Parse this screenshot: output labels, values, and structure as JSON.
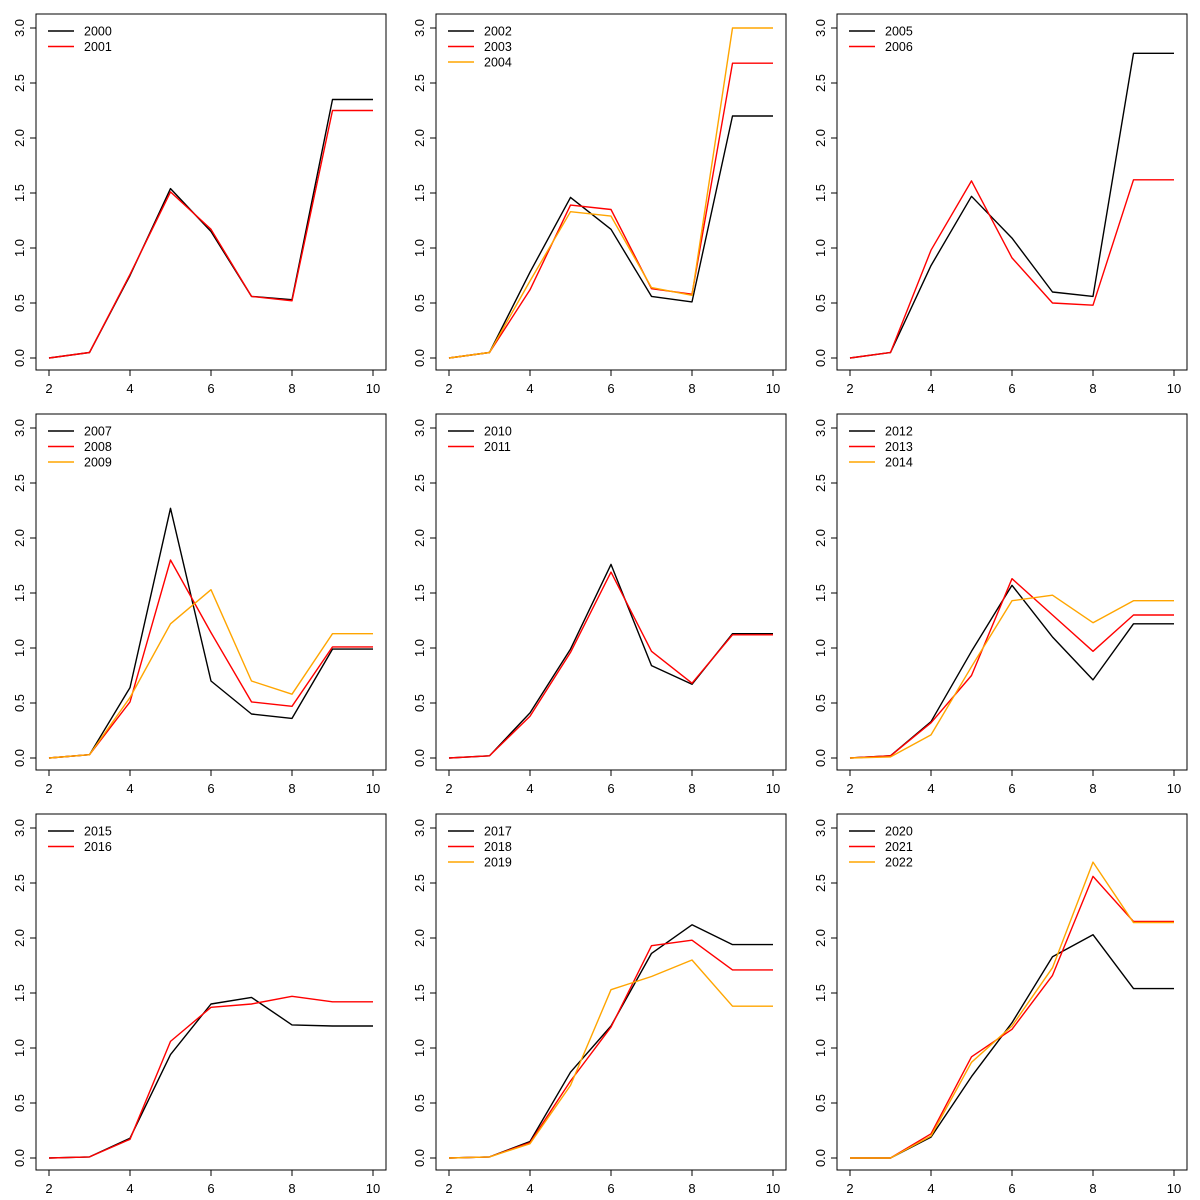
{
  "chart_data": [
    {
      "type": "line",
      "x": [
        2,
        3,
        4,
        5,
        6,
        7,
        8,
        9,
        10
      ],
      "xlim": [
        2,
        10
      ],
      "ylim": [
        0,
        3
      ],
      "xticks": [
        "2",
        "4",
        "6",
        "8",
        "10"
      ],
      "yticks": [
        "0.0",
        "0.5",
        "1.0",
        "1.5",
        "2.0",
        "2.5",
        "3.0"
      ],
      "legend": "top-left",
      "series": [
        {
          "name": "2000",
          "color": "#000000",
          "values": [
            0,
            0.05,
            0.75,
            1.54,
            1.15,
            0.56,
            0.53,
            2.35,
            2.35
          ]
        },
        {
          "name": "2001",
          "color": "#ff0000",
          "values": [
            0,
            0.05,
            0.76,
            1.51,
            1.17,
            0.56,
            0.52,
            2.25,
            2.25
          ]
        }
      ]
    },
    {
      "type": "line",
      "x": [
        2,
        3,
        4,
        5,
        6,
        7,
        8,
        9,
        10
      ],
      "xlim": [
        2,
        10
      ],
      "ylim": [
        0,
        3
      ],
      "xticks": [
        "2",
        "4",
        "6",
        "8",
        "10"
      ],
      "yticks": [
        "0.0",
        "0.5",
        "1.0",
        "1.5",
        "2.0",
        "2.5",
        "3.0"
      ],
      "legend": "top-left",
      "series": [
        {
          "name": "2002",
          "color": "#000000",
          "values": [
            0,
            0.05,
            0.78,
            1.46,
            1.17,
            0.56,
            0.51,
            2.2,
            2.2
          ]
        },
        {
          "name": "2003",
          "color": "#ff0000",
          "values": [
            0,
            0.05,
            0.62,
            1.39,
            1.35,
            0.63,
            0.58,
            2.68,
            2.68
          ]
        },
        {
          "name": "2004",
          "color": "#ffa500",
          "values": [
            0,
            0.05,
            0.7,
            1.33,
            1.29,
            0.64,
            0.57,
            3.0,
            3.0
          ]
        }
      ]
    },
    {
      "type": "line",
      "x": [
        2,
        3,
        4,
        5,
        6,
        7,
        8,
        9,
        10
      ],
      "xlim": [
        2,
        10
      ],
      "ylim": [
        0,
        3
      ],
      "xticks": [
        "2",
        "4",
        "6",
        "8",
        "10"
      ],
      "yticks": [
        "0.0",
        "0.5",
        "1.0",
        "1.5",
        "2.0",
        "2.5",
        "3.0"
      ],
      "legend": "top-left",
      "series": [
        {
          "name": "2005",
          "color": "#000000",
          "values": [
            0,
            0.05,
            0.84,
            1.47,
            1.09,
            0.6,
            0.56,
            2.77,
            2.77
          ]
        },
        {
          "name": "2006",
          "color": "#ff0000",
          "values": [
            0,
            0.05,
            0.98,
            1.61,
            0.91,
            0.5,
            0.48,
            1.62,
            1.62
          ]
        }
      ]
    },
    {
      "type": "line",
      "x": [
        2,
        3,
        4,
        5,
        6,
        7,
        8,
        9,
        10
      ],
      "xlim": [
        2,
        10
      ],
      "ylim": [
        0,
        3
      ],
      "xticks": [
        "2",
        "4",
        "6",
        "8",
        "10"
      ],
      "yticks": [
        "0.0",
        "0.5",
        "1.0",
        "1.5",
        "2.0",
        "2.5",
        "3.0"
      ],
      "legend": "top-left",
      "series": [
        {
          "name": "2007",
          "color": "#000000",
          "values": [
            0,
            0.03,
            0.64,
            2.27,
            0.7,
            0.4,
            0.36,
            0.99,
            0.99
          ]
        },
        {
          "name": "2008",
          "color": "#ff0000",
          "values": [
            0,
            0.03,
            0.51,
            1.8,
            1.14,
            0.51,
            0.47,
            1.01,
            1.01
          ]
        },
        {
          "name": "2009",
          "color": "#ffa500",
          "values": [
            0,
            0.03,
            0.55,
            1.22,
            1.53,
            0.7,
            0.58,
            1.13,
            1.13
          ]
        }
      ]
    },
    {
      "type": "line",
      "x": [
        2,
        3,
        4,
        5,
        6,
        7,
        8,
        9,
        10
      ],
      "xlim": [
        2,
        10
      ],
      "ylim": [
        0,
        3
      ],
      "xticks": [
        "2",
        "4",
        "6",
        "8",
        "10"
      ],
      "yticks": [
        "0.0",
        "0.5",
        "1.0",
        "1.5",
        "2.0",
        "2.5",
        "3.0"
      ],
      "legend": "top-left",
      "series": [
        {
          "name": "2010",
          "color": "#000000",
          "values": [
            0,
            0.02,
            0.41,
            0.99,
            1.76,
            0.84,
            0.67,
            1.13,
            1.13
          ]
        },
        {
          "name": "2011",
          "color": "#ff0000",
          "values": [
            0,
            0.02,
            0.38,
            0.96,
            1.69,
            0.97,
            0.68,
            1.12,
            1.12
          ]
        }
      ]
    },
    {
      "type": "line",
      "x": [
        2,
        3,
        4,
        5,
        6,
        7,
        8,
        9,
        10
      ],
      "xlim": [
        2,
        10
      ],
      "ylim": [
        0,
        3
      ],
      "xticks": [
        "2",
        "4",
        "6",
        "8",
        "10"
      ],
      "yticks": [
        "0.0",
        "0.5",
        "1.0",
        "1.5",
        "2.0",
        "2.5",
        "3.0"
      ],
      "legend": "top-left",
      "series": [
        {
          "name": "2012",
          "color": "#000000",
          "values": [
            0,
            0.02,
            0.33,
            0.97,
            1.57,
            1.1,
            0.71,
            1.22,
            1.22
          ]
        },
        {
          "name": "2013",
          "color": "#ff0000",
          "values": [
            0,
            0.02,
            0.32,
            0.75,
            1.63,
            1.3,
            0.97,
            1.3,
            1.3
          ]
        },
        {
          "name": "2014",
          "color": "#ffa500",
          "values": [
            0,
            0.01,
            0.21,
            0.83,
            1.43,
            1.48,
            1.23,
            1.43,
            1.43
          ]
        }
      ]
    },
    {
      "type": "line",
      "x": [
        2,
        3,
        4,
        5,
        6,
        7,
        8,
        9,
        10
      ],
      "xlim": [
        2,
        10
      ],
      "ylim": [
        0,
        3
      ],
      "xticks": [
        "2",
        "4",
        "6",
        "8",
        "10"
      ],
      "yticks": [
        "0.0",
        "0.5",
        "1.0",
        "1.5",
        "2.0",
        "2.5",
        "3.0"
      ],
      "legend": "top-left",
      "series": [
        {
          "name": "2015",
          "color": "#000000",
          "values": [
            0,
            0.01,
            0.18,
            0.94,
            1.4,
            1.46,
            1.21,
            1.2,
            1.2
          ]
        },
        {
          "name": "2016",
          "color": "#ff0000",
          "values": [
            0,
            0.01,
            0.17,
            1.06,
            1.37,
            1.4,
            1.47,
            1.42,
            1.42
          ]
        }
      ]
    },
    {
      "type": "line",
      "x": [
        2,
        3,
        4,
        5,
        6,
        7,
        8,
        9,
        10
      ],
      "xlim": [
        2,
        10
      ],
      "ylim": [
        0,
        3
      ],
      "xticks": [
        "2",
        "4",
        "6",
        "8",
        "10"
      ],
      "yticks": [
        "0.0",
        "0.5",
        "1.0",
        "1.5",
        "2.0",
        "2.5",
        "3.0"
      ],
      "legend": "top-left",
      "series": [
        {
          "name": "2017",
          "color": "#000000",
          "values": [
            0,
            0.01,
            0.15,
            0.78,
            1.2,
            1.86,
            2.12,
            1.94,
            1.94
          ]
        },
        {
          "name": "2018",
          "color": "#ff0000",
          "values": [
            0,
            0.01,
            0.14,
            0.7,
            1.19,
            1.93,
            1.98,
            1.71,
            1.71
          ]
        },
        {
          "name": "2019",
          "color": "#ffa500",
          "values": [
            0,
            0.01,
            0.13,
            0.66,
            1.53,
            1.65,
            1.8,
            1.38,
            1.38
          ]
        }
      ]
    },
    {
      "type": "line",
      "x": [
        2,
        3,
        4,
        5,
        6,
        7,
        8,
        9,
        10
      ],
      "xlim": [
        2,
        10
      ],
      "ylim": [
        0,
        3
      ],
      "xticks": [
        "2",
        "4",
        "6",
        "8",
        "10"
      ],
      "yticks": [
        "0.0",
        "0.5",
        "1.0",
        "1.5",
        "2.0",
        "2.5",
        "3.0"
      ],
      "legend": "top-left",
      "series": [
        {
          "name": "2020",
          "color": "#000000",
          "values": [
            0,
            0,
            0.19,
            0.74,
            1.23,
            1.83,
            2.03,
            1.54,
            1.54
          ]
        },
        {
          "name": "2021",
          "color": "#ff0000",
          "values": [
            0,
            0,
            0.22,
            0.92,
            1.17,
            1.66,
            2.56,
            2.15,
            2.15
          ]
        },
        {
          "name": "2022",
          "color": "#ffa500",
          "values": [
            0,
            0,
            0.2,
            0.87,
            1.2,
            1.73,
            2.69,
            2.14,
            2.14
          ]
        }
      ]
    }
  ]
}
